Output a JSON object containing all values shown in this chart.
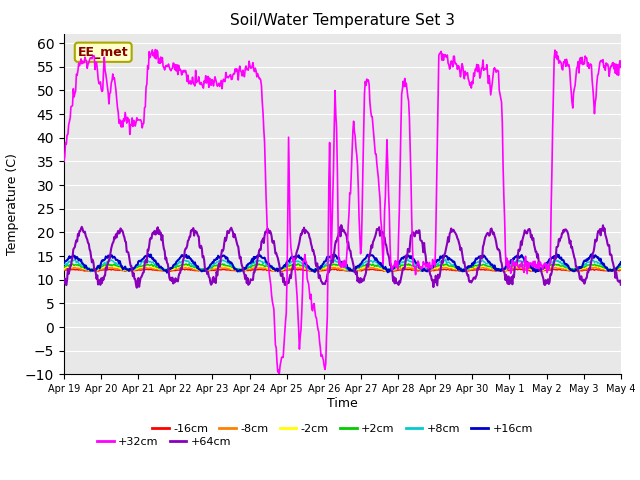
{
  "title": "Soil/Water Temperature Set 3",
  "xlabel": "Time",
  "ylabel": "Temperature (C)",
  "ylim": [
    -10,
    62
  ],
  "yticks": [
    -10,
    -5,
    0,
    5,
    10,
    15,
    20,
    25,
    30,
    35,
    40,
    45,
    50,
    55,
    60
  ],
  "annotation": "EE_met",
  "series_colors": {
    "-16cm": "#ff0000",
    "-8cm": "#ff8000",
    "-2cm": "#ffff00",
    "+2cm": "#00cc00",
    "+8cm": "#00cccc",
    "+16cm": "#0000cc",
    "+32cm": "#ff00ff",
    "+64cm": "#8800bb"
  },
  "x_tick_labels": [
    "Apr 19",
    "Apr 20",
    "Apr 21",
    "Apr 22",
    "Apr 23",
    "Apr 24",
    "Apr 25",
    "Apr 26",
    "Apr 27",
    "Apr 28",
    "Apr 29",
    "Apr 30",
    "May 1",
    "May 2",
    "May 3",
    "May 4"
  ],
  "legend_row1": [
    "-16cm",
    "-8cm",
    "-2cm",
    "+2cm",
    "+8cm",
    "+16cm"
  ],
  "legend_row2": [
    "+32cm",
    "+64cm"
  ]
}
